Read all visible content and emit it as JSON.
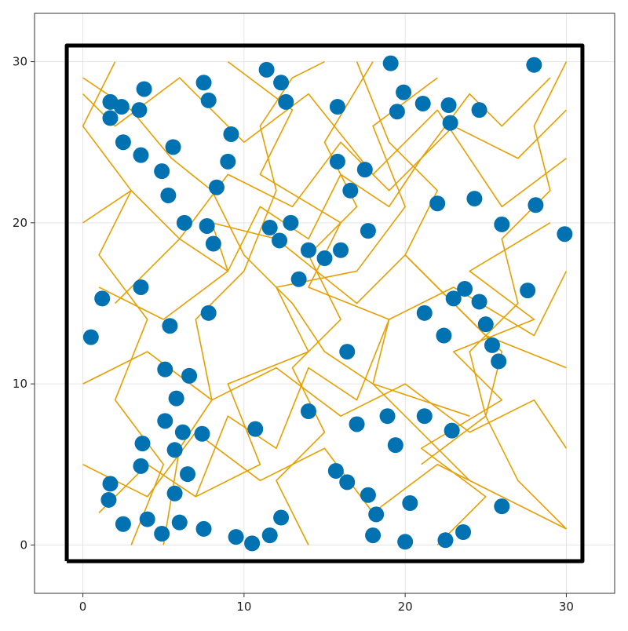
{
  "chart_data": {
    "type": "scatter",
    "xlim": [
      -3,
      33
    ],
    "ylim": [
      -3,
      33
    ],
    "xticks": [
      0,
      10,
      20,
      30
    ],
    "yticks": [
      0,
      10,
      20,
      30
    ],
    "grid": true,
    "walls": {
      "color": "#000000",
      "x": [
        -1,
        31,
        31,
        -1,
        -1
      ],
      "y": [
        -1,
        -1,
        31,
        31,
        -1
      ]
    },
    "trajectory_color": "#e69f00",
    "trajectories": [
      {
        "x": [
          0,
          3,
          5.5,
          8,
          10,
          13,
          15,
          18,
          21,
          24
        ],
        "y": [
          29,
          27,
          24,
          22,
          18,
          15,
          12,
          10,
          7,
          4
        ]
      },
      {
        "x": [
          1,
          4,
          7,
          9,
          12,
          14,
          17,
          19,
          23,
          28,
          30
        ],
        "y": [
          2,
          5,
          3,
          8,
          6,
          11,
          9,
          14,
          16,
          13,
          17
        ]
      },
      {
        "x": [
          29,
          26,
          24,
          21,
          19,
          16,
          14,
          11,
          9,
          6,
          2
        ],
        "y": [
          29,
          26,
          28,
          24,
          21,
          23,
          19,
          21,
          17,
          19,
          15
        ]
      },
      {
        "x": [
          5,
          6,
          8,
          7,
          10,
          12,
          11,
          13,
          15
        ],
        "y": [
          0,
          6,
          9,
          14,
          17,
          22,
          26,
          29,
          30
        ]
      },
      {
        "x": [
          30,
          27,
          25,
          26,
          23,
          20,
          22,
          19,
          17
        ],
        "y": [
          1,
          4,
          8,
          12,
          15,
          18,
          22,
          25,
          30
        ]
      },
      {
        "x": [
          0,
          4,
          8,
          12,
          16,
          20,
          24,
          28,
          30
        ],
        "y": [
          10,
          12,
          9,
          11,
          8,
          10,
          7,
          9,
          6
        ]
      },
      {
        "x": [
          0,
          3,
          6,
          9,
          13,
          16,
          19,
          23,
          27,
          30
        ],
        "y": [
          20,
          22,
          19,
          23,
          21,
          25,
          22,
          26,
          24,
          27
        ]
      },
      {
        "x": [
          14,
          12,
          15,
          13,
          16,
          14,
          17,
          15,
          18
        ],
        "y": [
          0,
          4,
          7,
          11,
          14,
          18,
          21,
          25,
          30
        ]
      },
      {
        "x": [
          22,
          25,
          21,
          26,
          23,
          28,
          24,
          29
        ],
        "y": [
          0,
          3,
          6,
          9,
          12,
          14,
          17,
          20
        ]
      },
      {
        "x": [
          2,
          0,
          3,
          1,
          4,
          2,
          5,
          3
        ],
        "y": [
          30,
          26,
          22,
          18,
          14,
          9,
          5,
          0
        ]
      },
      {
        "x": [
          30,
          26,
          22,
          18,
          14,
          10,
          6,
          2,
          0
        ],
        "y": [
          24,
          21,
          27,
          23,
          28,
          25,
          29,
          26,
          28
        ]
      },
      {
        "x": [
          9,
          13,
          11,
          16,
          14,
          19,
          18,
          24
        ],
        "y": [
          30,
          27,
          23,
          20,
          16,
          14,
          10,
          8
        ]
      },
      {
        "x": [
          0,
          4,
          7,
          11,
          15,
          18,
          22,
          26,
          30
        ],
        "y": [
          5,
          3,
          7,
          4,
          6,
          2,
          5,
          3,
          1
        ]
      },
      {
        "x": [
          30,
          28,
          29,
          26,
          27,
          24,
          25,
          21
        ],
        "y": [
          30,
          26,
          22,
          19,
          15,
          12,
          8,
          5
        ]
      },
      {
        "x": [
          7,
          11,
          9,
          14,
          12,
          17,
          20,
          18,
          22
        ],
        "y": [
          3,
          5,
          10,
          12,
          16,
          17,
          21,
          26,
          29
        ]
      },
      {
        "x": [
          1,
          5,
          9,
          8,
          12,
          17,
          20,
          25,
          30
        ],
        "y": [
          16,
          14,
          17,
          20,
          19,
          15,
          18,
          13,
          11
        ]
      }
    ],
    "points": {
      "color": "#0072b2",
      "x": [
        19.1,
        28.0,
        1.7,
        2.4,
        3.8,
        7.5,
        3.5,
        1.7,
        7.8,
        11.4,
        12.3,
        12.6,
        15.8,
        19.9,
        19.5,
        21.1,
        22.7,
        22.8,
        24.6,
        2.5,
        3.6,
        5.6,
        9.2,
        4.9,
        9.0,
        15.8,
        17.5,
        16.6,
        8.3,
        5.3,
        22.0,
        24.3,
        28.1,
        6.3,
        7.7,
        11.6,
        12.9,
        12.2,
        8.1,
        17.7,
        26.0,
        29.9,
        14.0,
        15.0,
        16.0,
        13.4,
        3.6,
        1.2,
        23.7,
        23.0,
        24.6,
        27.6,
        21.2,
        7.8,
        5.4,
        25.0,
        0.5,
        22.4,
        25.4,
        25.8,
        16.4,
        5.1,
        6.6,
        5.8,
        14.0,
        18.9,
        21.2,
        5.1,
        17.0,
        6.2,
        7.4,
        10.7,
        22.9,
        19.4,
        3.7,
        5.7,
        3.6,
        6.5,
        15.7,
        16.4,
        1.7,
        1.6,
        5.7,
        17.7,
        20.3,
        26.0,
        18.2,
        12.3,
        4.0,
        2.5,
        6.0,
        7.5,
        4.9,
        11.6,
        9.5,
        10.5,
        18.0,
        20.0,
        22.5,
        23.6
      ],
      "y": [
        29.9,
        29.8,
        27.5,
        27.2,
        28.3,
        28.7,
        27.0,
        26.5,
        27.6,
        29.5,
        28.7,
        27.5,
        27.2,
        28.1,
        26.9,
        27.4,
        27.3,
        26.2,
        27.0,
        25.0,
        24.2,
        24.7,
        25.5,
        23.2,
        23.8,
        23.8,
        23.3,
        22.0,
        22.2,
        21.7,
        21.2,
        21.5,
        21.1,
        20.0,
        19.8,
        19.7,
        20.0,
        18.9,
        18.7,
        19.5,
        19.9,
        19.3,
        18.3,
        17.8,
        18.3,
        16.5,
        16.0,
        15.3,
        15.9,
        15.3,
        15.1,
        15.8,
        14.4,
        14.4,
        13.6,
        13.7,
        12.9,
        13.0,
        12.4,
        11.4,
        12.0,
        10.9,
        10.5,
        9.1,
        8.3,
        8.0,
        8.0,
        7.7,
        7.5,
        7.0,
        6.9,
        7.2,
        7.1,
        6.2,
        6.3,
        5.9,
        4.9,
        4.4,
        4.6,
        3.9,
        3.8,
        2.8,
        3.2,
        3.1,
        2.6,
        2.4,
        1.9,
        1.7,
        1.6,
        1.3,
        1.4,
        1.0,
        0.7,
        0.6,
        0.5,
        0.1,
        0.6,
        0.2,
        0.3,
        0.8
      ]
    }
  }
}
